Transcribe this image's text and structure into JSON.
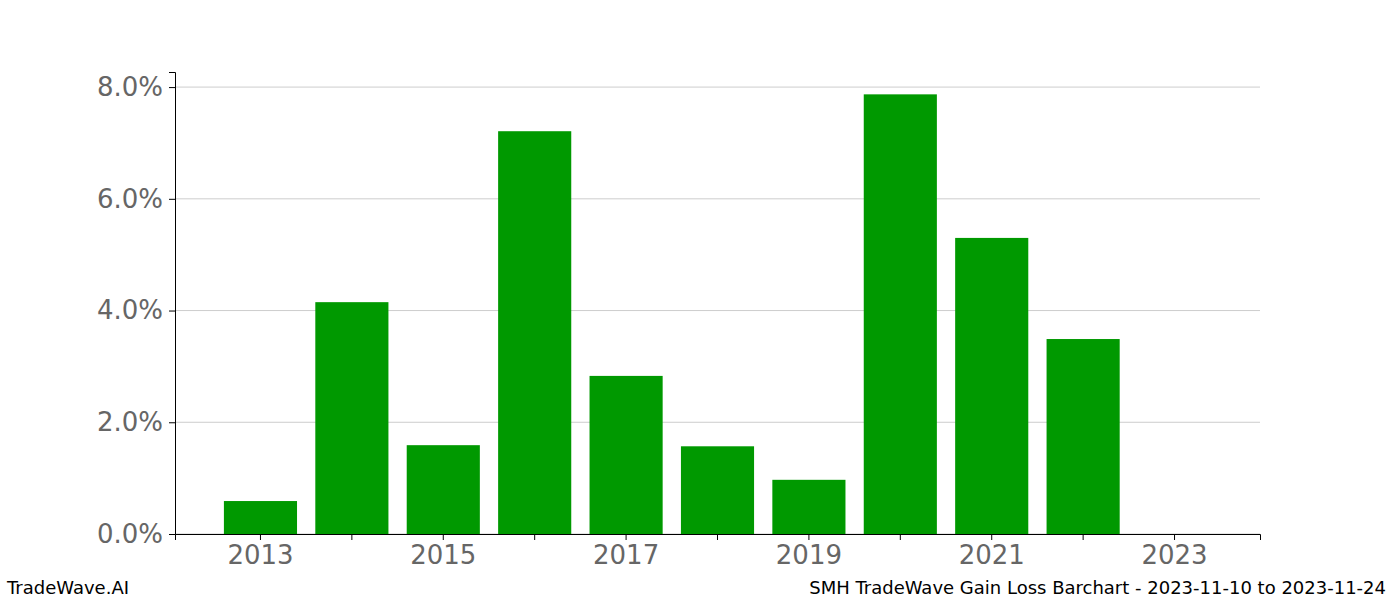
{
  "chart_data": {
    "type": "bar",
    "title": "SMH TradeWave Gain Loss Barchart - 2023-11-10 to 2023-11-24",
    "annotations": [
      "TradeWave.AI"
    ],
    "categories": [
      "2013",
      null,
      "2015",
      null,
      "2017",
      null,
      "2019",
      null,
      "2021",
      null,
      "2023"
    ],
    "values": [
      0.59,
      4.15,
      1.59,
      7.21,
      2.83,
      1.57,
      0.97,
      7.87,
      5.3,
      3.49,
      0
    ],
    "color": "#009900",
    "ylim": [
      0,
      8.27
    ],
    "yticks": [
      {
        "value": 0,
        "label": "0.0%"
      },
      {
        "value": 2,
        "label": "2.0%"
      },
      {
        "value": 4,
        "label": "4.0%"
      },
      {
        "value": 6,
        "label": "6.0%"
      },
      {
        "value": 8,
        "label": "8.0%"
      }
    ],
    "grid": true
  }
}
